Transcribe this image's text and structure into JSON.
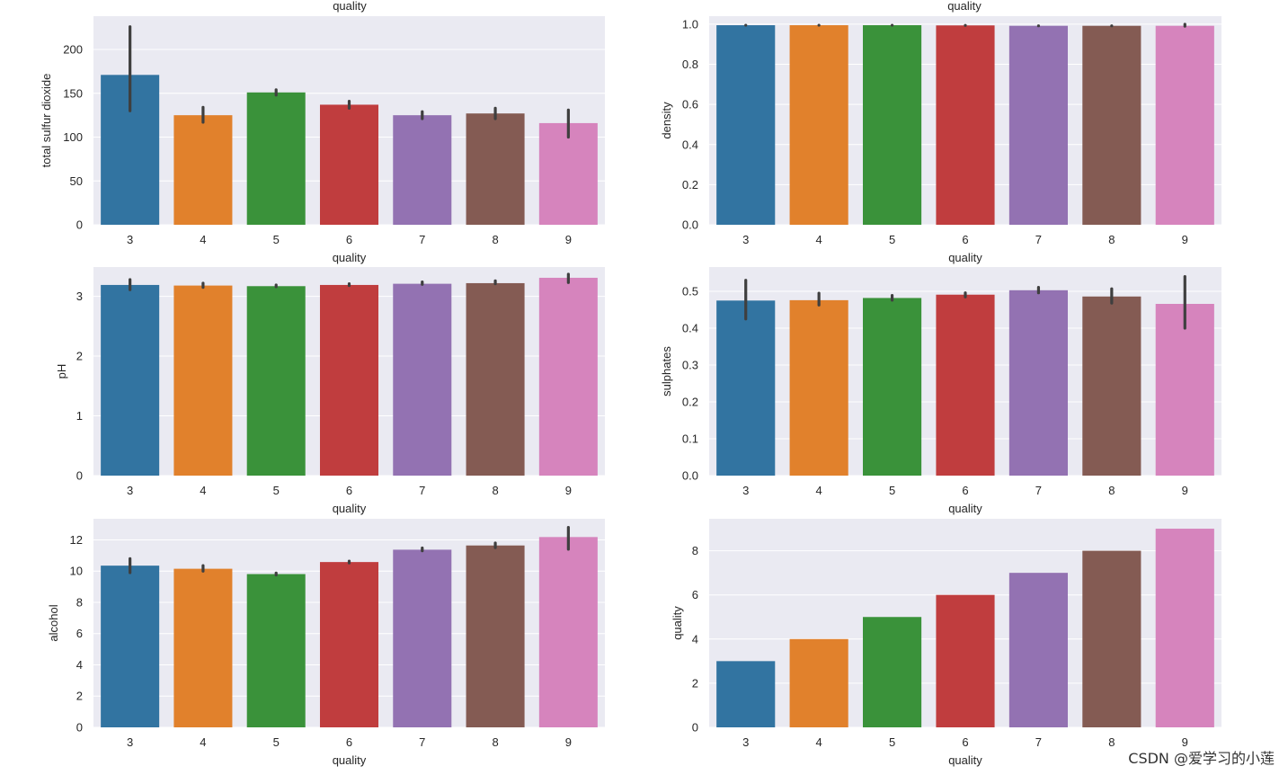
{
  "chart_data": [
    {
      "type": "bar",
      "categories": [
        "3",
        "4",
        "5",
        "6",
        "7",
        "8",
        "9"
      ],
      "values": [
        171,
        125,
        151,
        137,
        125,
        127,
        116
      ],
      "errors": [
        [
          130,
          226
        ],
        [
          117,
          134
        ],
        [
          148,
          154
        ],
        [
          133,
          141
        ],
        [
          121,
          129
        ],
        [
          121,
          133
        ],
        [
          100,
          131
        ]
      ],
      "xlabel": "quality",
      "ylabel": "total sulfur dioxide",
      "ylim": [
        0,
        238
      ],
      "yticks": [
        0,
        50,
        100,
        150,
        200
      ],
      "yticklabels": [
        "0",
        "50",
        "100",
        "150",
        "200"
      ]
    },
    {
      "type": "bar",
      "categories": [
        "3",
        "4",
        "5",
        "6",
        "7",
        "8",
        "9"
      ],
      "values": [
        0.995,
        0.995,
        0.995,
        0.994,
        0.992,
        0.992,
        0.992
      ],
      "errors": [
        [
          0.995,
          0.995
        ],
        [
          0.995,
          0.995
        ],
        [
          0.995,
          0.995
        ],
        [
          0.994,
          0.994
        ],
        [
          0.992,
          0.992
        ],
        [
          0.992,
          0.992
        ],
        [
          0.99,
          1.0
        ]
      ],
      "xlabel": "quality",
      "ylabel": "density",
      "ylim": [
        0,
        1.04
      ],
      "yticks": [
        0,
        0.2,
        0.4,
        0.6,
        0.8,
        1.0
      ],
      "yticklabels": [
        "0.0",
        "0.2",
        "0.4",
        "0.6",
        "0.8",
        "1.0"
      ]
    },
    {
      "type": "bar",
      "categories": [
        "3",
        "4",
        "5",
        "6",
        "7",
        "8",
        "9"
      ],
      "values": [
        3.19,
        3.18,
        3.17,
        3.19,
        3.21,
        3.22,
        3.31
      ],
      "errors": [
        [
          3.11,
          3.28
        ],
        [
          3.15,
          3.22
        ],
        [
          3.16,
          3.19
        ],
        [
          3.18,
          3.21
        ],
        [
          3.2,
          3.24
        ],
        [
          3.21,
          3.26
        ],
        [
          3.23,
          3.37
        ]
      ],
      "xlabel": "quality",
      "ylabel": "pH",
      "ylim": [
        0,
        3.49
      ],
      "yticks": [
        0,
        1,
        2,
        3
      ],
      "yticklabels": [
        "0",
        "1",
        "2",
        "3"
      ]
    },
    {
      "type": "bar",
      "categories": [
        "3",
        "4",
        "5",
        "6",
        "7",
        "8",
        "9"
      ],
      "values": [
        0.475,
        0.476,
        0.482,
        0.491,
        0.503,
        0.486,
        0.466
      ],
      "errors": [
        [
          0.425,
          0.53
        ],
        [
          0.463,
          0.495
        ],
        [
          0.476,
          0.489
        ],
        [
          0.485,
          0.496
        ],
        [
          0.496,
          0.511
        ],
        [
          0.468,
          0.507
        ],
        [
          0.4,
          0.54
        ]
      ],
      "xlabel": "quality",
      "ylabel": "sulphates",
      "ylim": [
        0,
        0.566
      ],
      "yticks": [
        0,
        0.1,
        0.2,
        0.3,
        0.4,
        0.5
      ],
      "yticklabels": [
        "0.0",
        "0.1",
        "0.2",
        "0.3",
        "0.4",
        "0.5"
      ]
    },
    {
      "type": "bar",
      "categories": [
        "3",
        "4",
        "5",
        "6",
        "7",
        "8",
        "9"
      ],
      "values": [
        10.35,
        10.15,
        9.81,
        10.58,
        11.37,
        11.64,
        12.18
      ],
      "errors": [
        [
          9.9,
          10.8
        ],
        [
          10.0,
          10.35
        ],
        [
          9.75,
          9.88
        ],
        [
          10.52,
          10.64
        ],
        [
          11.3,
          11.48
        ],
        [
          11.5,
          11.8
        ],
        [
          11.4,
          12.8
        ]
      ],
      "xlabel": "quality",
      "ylabel": "alcohol",
      "ylim": [
        0,
        13.35
      ],
      "yticks": [
        0,
        2,
        4,
        6,
        8,
        10,
        12
      ],
      "yticklabels": [
        "0",
        "2",
        "4",
        "6",
        "8",
        "10",
        "12"
      ]
    },
    {
      "type": "bar",
      "categories": [
        "3",
        "4",
        "5",
        "6",
        "7",
        "8",
        "9"
      ],
      "values": [
        3,
        4,
        5,
        6,
        7,
        8,
        9
      ],
      "xlabel": "quality",
      "ylabel": "quality",
      "ylim": [
        0,
        9.45
      ],
      "yticks": [
        0,
        2,
        4,
        6,
        8
      ],
      "yticklabels": [
        "0",
        "2",
        "4",
        "6",
        "8"
      ]
    }
  ],
  "top_titles": [
    "quality",
    "quality"
  ],
  "colors": [
    "#3274a1",
    "#e1812c",
    "#3a923a",
    "#c03d3e",
    "#9372b2",
    "#845b53",
    "#d684bd"
  ],
  "watermark": "CSDN @爱学习的小莲"
}
